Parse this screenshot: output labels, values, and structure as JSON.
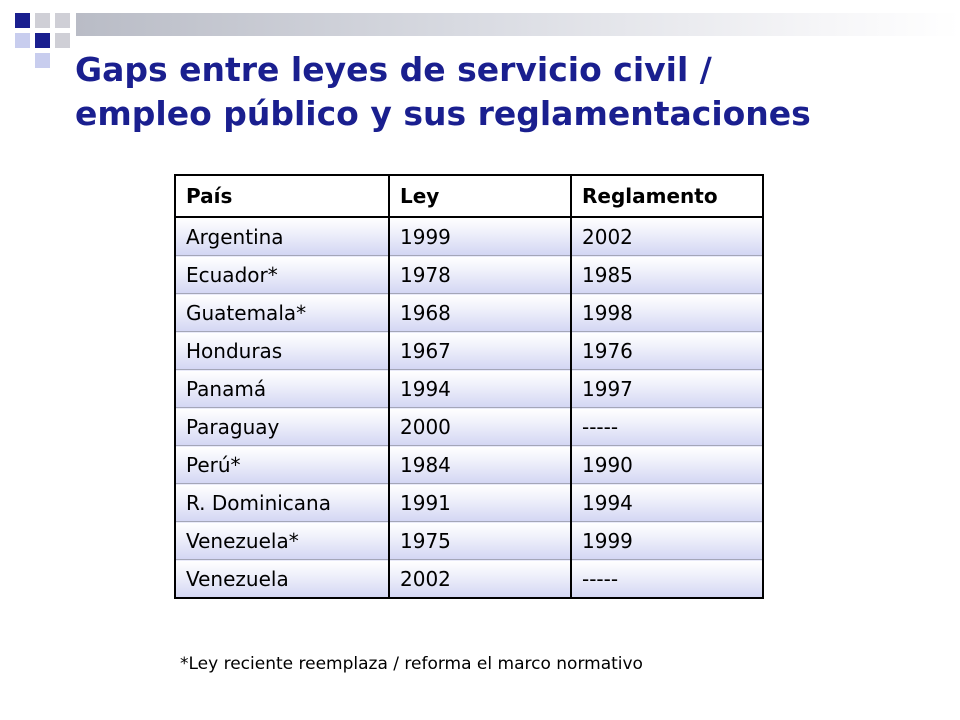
{
  "slide": {
    "title_line1": "Gaps entre leyes de servicio civil /",
    "title_line2": "empleo público y sus reglamentaciones",
    "footnote": "*Ley reciente reemplaza / reforma el marco normativo"
  },
  "table": {
    "headers": [
      "País",
      "Ley",
      "Reglamento"
    ],
    "rows": [
      [
        "Argentina",
        "1999",
        "2002"
      ],
      [
        "Ecuador*",
        "1978",
        "1985"
      ],
      [
        "Guatemala*",
        "1968",
        "1998"
      ],
      [
        "Honduras",
        "1967",
        "1976"
      ],
      [
        "Panamá",
        "1994",
        "1997"
      ],
      [
        "Paraguay",
        "2000",
        "-----"
      ],
      [
        "Perú*",
        "1984",
        "1990"
      ],
      [
        "R. Dominicana",
        "1991",
        "1994"
      ],
      [
        "Venezuela*",
        "1975",
        "1999"
      ],
      [
        "Venezuela",
        "2002",
        "-----"
      ]
    ]
  },
  "colors": {
    "title": "#1a1f8f",
    "accent_navy": "#1a1f8f",
    "accent_lavender": "#c8cdee",
    "cell_gradient_bottom": "#d3d6f3"
  }
}
